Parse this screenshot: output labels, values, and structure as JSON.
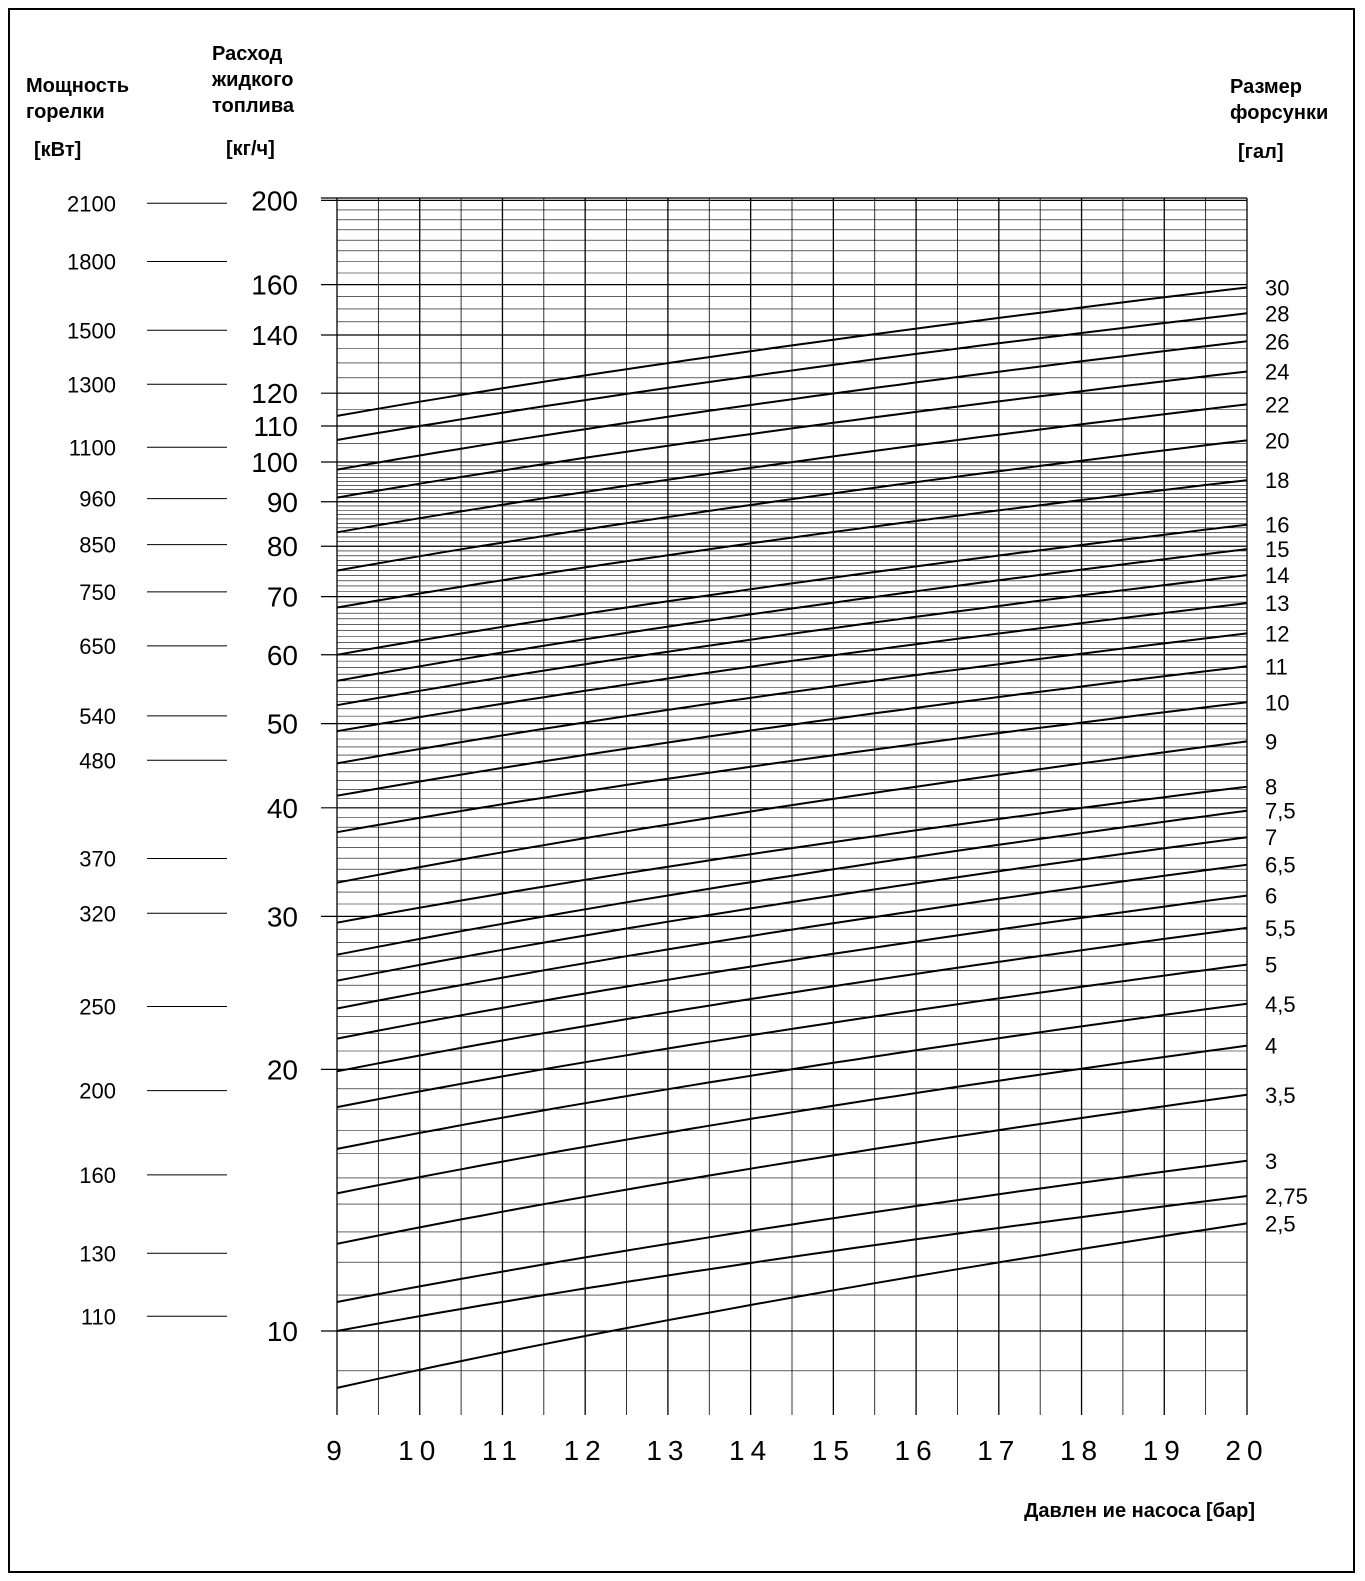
{
  "chart_data": {
    "type": "line",
    "headers": {
      "left_axis_title": [
        "Мощность",
        "горелки"
      ],
      "left_axis_unit": "[кВт]",
      "center_axis_title": [
        "Расход",
        "жидкого",
        "топлива"
      ],
      "center_axis_unit": "[кг/ч]",
      "right_axis_title": [
        "Размер",
        "форсунки"
      ],
      "right_axis_unit": "[гал]"
    },
    "xlabel": "Давлен ие насоса [бар]",
    "x_ticks": [
      "9",
      "10",
      "11",
      "12",
      "13",
      "14",
      "15",
      "16",
      "17",
      "18",
      "19",
      "20"
    ],
    "xlim": [
      9,
      20
    ],
    "ylim": [
      8,
      200
    ],
    "y_scale": "log",
    "y_ticks": [
      "10",
      "20",
      "30",
      "40",
      "50",
      "60",
      "70",
      "80",
      "90",
      "100",
      "110",
      "120",
      "140",
      "160",
      "200"
    ],
    "power_scale_kw": [
      "2100",
      "1800",
      "1500",
      "1300",
      "1100",
      "960",
      "850",
      "750",
      "650",
      "540",
      "480",
      "370",
      "320",
      "250",
      "200",
      "160",
      "130",
      "110"
    ],
    "grid": true,
    "series": [
      {
        "name": "2,5",
        "x": [
          9,
          20
        ],
        "y": [
          8.6,
          13.3
        ]
      },
      {
        "name": "2,75",
        "x": [
          9,
          20
        ],
        "y": [
          10,
          14.3
        ]
      },
      {
        "name": "3",
        "x": [
          9,
          20
        ],
        "y": [
          10.8,
          15.7
        ]
      },
      {
        "name": "3,5",
        "x": [
          9,
          20
        ],
        "y": [
          12.6,
          18.7
        ]
      },
      {
        "name": "4",
        "x": [
          9,
          20
        ],
        "y": [
          14.4,
          21.3
        ]
      },
      {
        "name": "4,5",
        "x": [
          9,
          20
        ],
        "y": [
          16.2,
          23.8
        ]
      },
      {
        "name": "5",
        "x": [
          9,
          20
        ],
        "y": [
          18.1,
          26.4
        ]
      },
      {
        "name": "5,5",
        "x": [
          9,
          20
        ],
        "y": [
          19.9,
          29.1
        ]
      },
      {
        "name": "6",
        "x": [
          9,
          20
        ],
        "y": [
          21.7,
          31.7
        ]
      },
      {
        "name": "6,5",
        "x": [
          9,
          20
        ],
        "y": [
          23.5,
          34.4
        ]
      },
      {
        "name": "7",
        "x": [
          9,
          20
        ],
        "y": [
          25.3,
          37
        ]
      },
      {
        "name": "7,5",
        "x": [
          9,
          20
        ],
        "y": [
          27.1,
          39.7
        ]
      },
      {
        "name": "8",
        "x": [
          9,
          20
        ],
        "y": [
          29.5,
          42.3
        ]
      },
      {
        "name": "9",
        "x": [
          9,
          20
        ],
        "y": [
          32.8,
          47.7
        ]
      },
      {
        "name": "10",
        "x": [
          9,
          20
        ],
        "y": [
          37.5,
          52.9
        ]
      },
      {
        "name": "11",
        "x": [
          9,
          20
        ],
        "y": [
          41.3,
          58.2
        ]
      },
      {
        "name": "12",
        "x": [
          9,
          20
        ],
        "y": [
          45,
          63.5
        ]
      },
      {
        "name": "13",
        "x": [
          9,
          20
        ],
        "y": [
          49,
          68.8
        ]
      },
      {
        "name": "14",
        "x": [
          9,
          20
        ],
        "y": [
          52.5,
          74.1
        ]
      },
      {
        "name": "15",
        "x": [
          9,
          20
        ],
        "y": [
          56,
          79.4
        ]
      },
      {
        "name": "16",
        "x": [
          9,
          20
        ],
        "y": [
          60,
          84.7
        ]
      },
      {
        "name": "18",
        "x": [
          9,
          20
        ],
        "y": [
          68,
          95.3
        ]
      },
      {
        "name": "20",
        "x": [
          9,
          20
        ],
        "y": [
          75,
          105.9
        ]
      },
      {
        "name": "22",
        "x": [
          9,
          20
        ],
        "y": [
          83,
          116.5
        ]
      },
      {
        "name": "24",
        "x": [
          9,
          20
        ],
        "y": [
          91,
          127.1
        ]
      },
      {
        "name": "26",
        "x": [
          9,
          20
        ],
        "y": [
          98,
          137.7
        ]
      },
      {
        "name": "28",
        "x": [
          9,
          20
        ],
        "y": [
          106,
          148.3
        ]
      },
      {
        "name": "30",
        "x": [
          9,
          20
        ],
        "y": [
          113,
          158.8
        ]
      }
    ]
  }
}
